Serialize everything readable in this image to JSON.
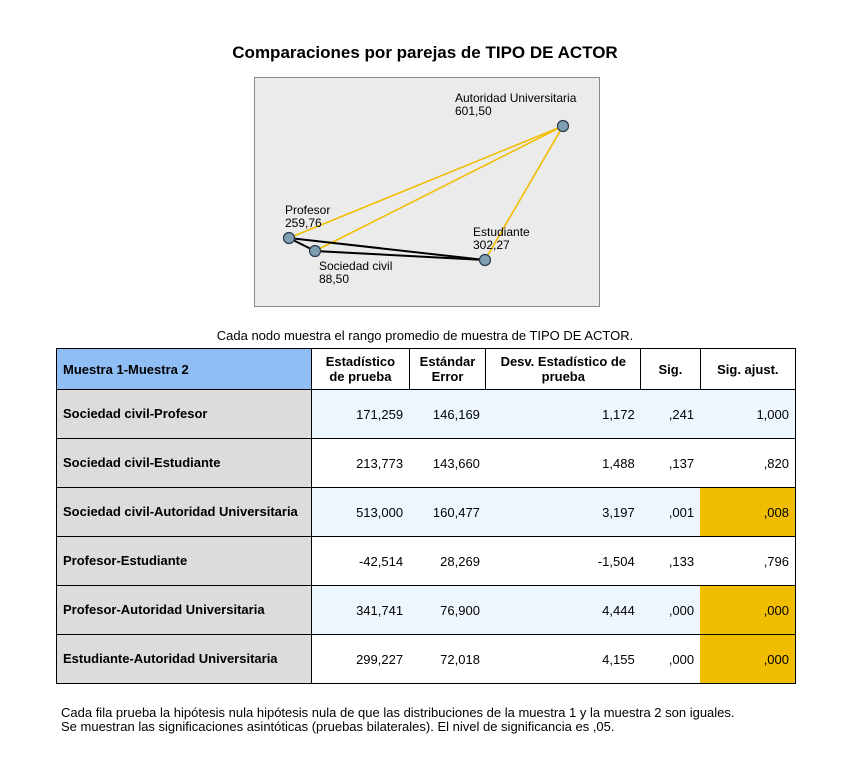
{
  "chart_data": {
    "type": "network",
    "title": "Comparaciones por parejas de TIPO DE ACTOR",
    "caption": "Cada nodo muestra el rango promedio de muestra de TIPO DE ACTOR.",
    "nodes": [
      {
        "id": "autoridad",
        "name": "Autoridad Universitaria",
        "value": "601,50"
      },
      {
        "id": "profesor",
        "name": "Profesor",
        "value": "259,76"
      },
      {
        "id": "estudiante",
        "name": "Estudiante",
        "value": "302,27"
      },
      {
        "id": "sociedad",
        "name": "Sociedad civil",
        "value": "88,50"
      }
    ],
    "edges": [
      {
        "from": "sociedad",
        "to": "profesor",
        "significant": false
      },
      {
        "from": "sociedad",
        "to": "estudiante",
        "significant": false
      },
      {
        "from": "sociedad",
        "to": "autoridad",
        "significant": true
      },
      {
        "from": "profesor",
        "to": "estudiante",
        "significant": false
      },
      {
        "from": "profesor",
        "to": "autoridad",
        "significant": true
      },
      {
        "from": "estudiante",
        "to": "autoridad",
        "significant": true
      }
    ],
    "colors": {
      "significant": "#f0bd00",
      "not_significant": "#000000",
      "node_fill": "#7f9fb3",
      "highlight_cell": "#f0bd00",
      "header": "#8fbef5"
    },
    "table": {
      "headers": [
        "Muestra 1-Muestra 2",
        "Estadístico de prueba",
        "Estándar Error",
        "Desv. Estadístico de prueba",
        "Sig.",
        "Sig. ajust."
      ],
      "rows": [
        {
          "label": "Sociedad civil-Profesor",
          "values": [
            "171,259",
            "146,169",
            "1,172",
            ",241",
            "1,000"
          ],
          "highlight": false
        },
        {
          "label": "Sociedad civil-Estudiante",
          "values": [
            "213,773",
            "143,660",
            "1,488",
            ",137",
            ",820"
          ],
          "highlight": false
        },
        {
          "label": "Sociedad civil-Autoridad Universitaria",
          "values": [
            "513,000",
            "160,477",
            "3,197",
            ",001",
            ",008"
          ],
          "highlight": true
        },
        {
          "label": "Profesor-Estudiante",
          "values": [
            "-42,514",
            "28,269",
            "-1,504",
            ",133",
            ",796"
          ],
          "highlight": false
        },
        {
          "label": "Profesor-Autoridad Universitaria",
          "values": [
            "341,741",
            "76,900",
            "4,444",
            ",000",
            ",000"
          ],
          "highlight": true
        },
        {
          "label": "Estudiante-Autoridad Universitaria",
          "values": [
            "299,227",
            "72,018",
            "4,155",
            ",000",
            ",000"
          ],
          "highlight": true
        }
      ]
    },
    "footnotes": [
      "Cada fila prueba la hipótesis nula hipótesis nula de que las distribuciones de la muestra 1 y la muestra 2 son iguales.",
      "Se muestran las significaciones asintóticas (pruebas bilaterales). El nivel de significancia es ,05."
    ]
  }
}
